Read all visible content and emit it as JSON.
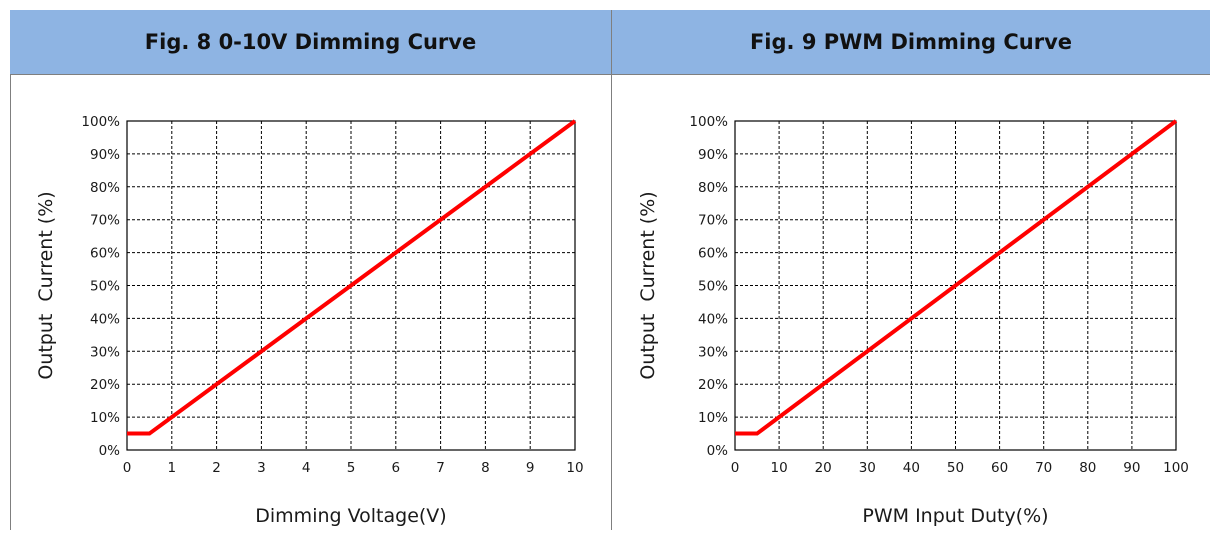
{
  "colors": {
    "header_bg": "#8eb4e3",
    "curve": "#ff0000",
    "grid": "#000000"
  },
  "chart_data": [
    {
      "type": "line",
      "title": "Fig. 8 0-10V Dimming Curve",
      "xlabel": "Dimming Voltage(V)",
      "ylabel": "Output  Current (%)",
      "xlim": [
        0,
        10
      ],
      "ylim": [
        0,
        100
      ],
      "x_ticks": [
        0,
        1,
        2,
        3,
        4,
        5,
        6,
        7,
        8,
        9,
        10
      ],
      "x_tick_labels": [
        "0",
        "1",
        "2",
        "3",
        "4",
        "5",
        "6",
        "7",
        "8",
        "9",
        "10"
      ],
      "y_ticks": [
        0,
        10,
        20,
        30,
        40,
        50,
        60,
        70,
        80,
        90,
        100
      ],
      "y_tick_labels": [
        "0%",
        "10%",
        "20%",
        "30%",
        "40%",
        "50%",
        "60%",
        "70%",
        "80%",
        "90%",
        "100%"
      ],
      "grid": true,
      "grid_style": "dashed",
      "series": [
        {
          "x": [
            0,
            0.5,
            1,
            10
          ],
          "y": [
            5,
            5,
            10,
            100
          ],
          "color": "#ff0000"
        }
      ]
    },
    {
      "type": "line",
      "title": "Fig. 9 PWM Dimming Curve",
      "xlabel": "PWM Input Duty(%)",
      "ylabel": "Output  Current (%)",
      "xlim": [
        0,
        100
      ],
      "ylim": [
        0,
        100
      ],
      "x_ticks": [
        0,
        10,
        20,
        30,
        40,
        50,
        60,
        70,
        80,
        90,
        100
      ],
      "x_tick_labels": [
        "0",
        "10",
        "20",
        "30",
        "40",
        "50",
        "60",
        "70",
        "80",
        "90",
        "100"
      ],
      "y_ticks": [
        0,
        10,
        20,
        30,
        40,
        50,
        60,
        70,
        80,
        90,
        100
      ],
      "y_tick_labels": [
        "0%",
        "10%",
        "20%",
        "30%",
        "40%",
        "50%",
        "60%",
        "70%",
        "80%",
        "90%",
        "100%"
      ],
      "grid": true,
      "grid_style": "dashed",
      "series": [
        {
          "x": [
            0,
            5,
            10,
            100
          ],
          "y": [
            5,
            5,
            10,
            100
          ],
          "color": "#ff0000"
        }
      ]
    }
  ]
}
